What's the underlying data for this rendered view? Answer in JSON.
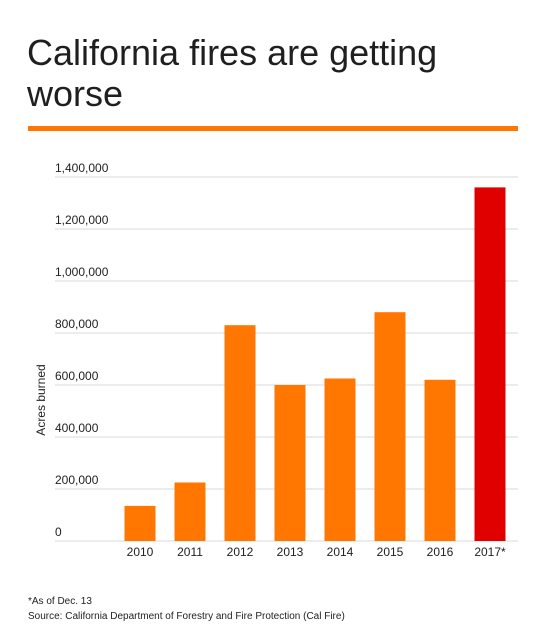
{
  "title": "California fires are getting worse",
  "footnote": "*As of Dec. 13",
  "source": "Source: California Department of Forestry and Fire Protection (Cal Fire)",
  "colors": {
    "accent_rule": "#ff7700",
    "bar": "#ff7700",
    "highlight_bar": "#e00000",
    "grid": "#d9d9d9",
    "text": "#222222"
  },
  "chart_data": {
    "type": "bar",
    "title": "",
    "xlabel": "",
    "ylabel": "Acres burned",
    "categories": [
      "2010",
      "2011",
      "2012",
      "2013",
      "2014",
      "2015",
      "2016",
      "2017*"
    ],
    "values": [
      135000,
      225000,
      830000,
      600000,
      625000,
      880000,
      620000,
      1360000
    ],
    "highlight_index": 7,
    "ylim": [
      0,
      1400000
    ],
    "yticks": [
      0,
      200000,
      400000,
      600000,
      800000,
      1000000,
      1200000,
      1400000
    ],
    "ytick_labels": [
      "0",
      "200,000",
      "400,000",
      "600,000",
      "800,000",
      "1,000,000",
      "1,200,000",
      "1,400,000"
    ],
    "grid": true,
    "legend": "none"
  }
}
